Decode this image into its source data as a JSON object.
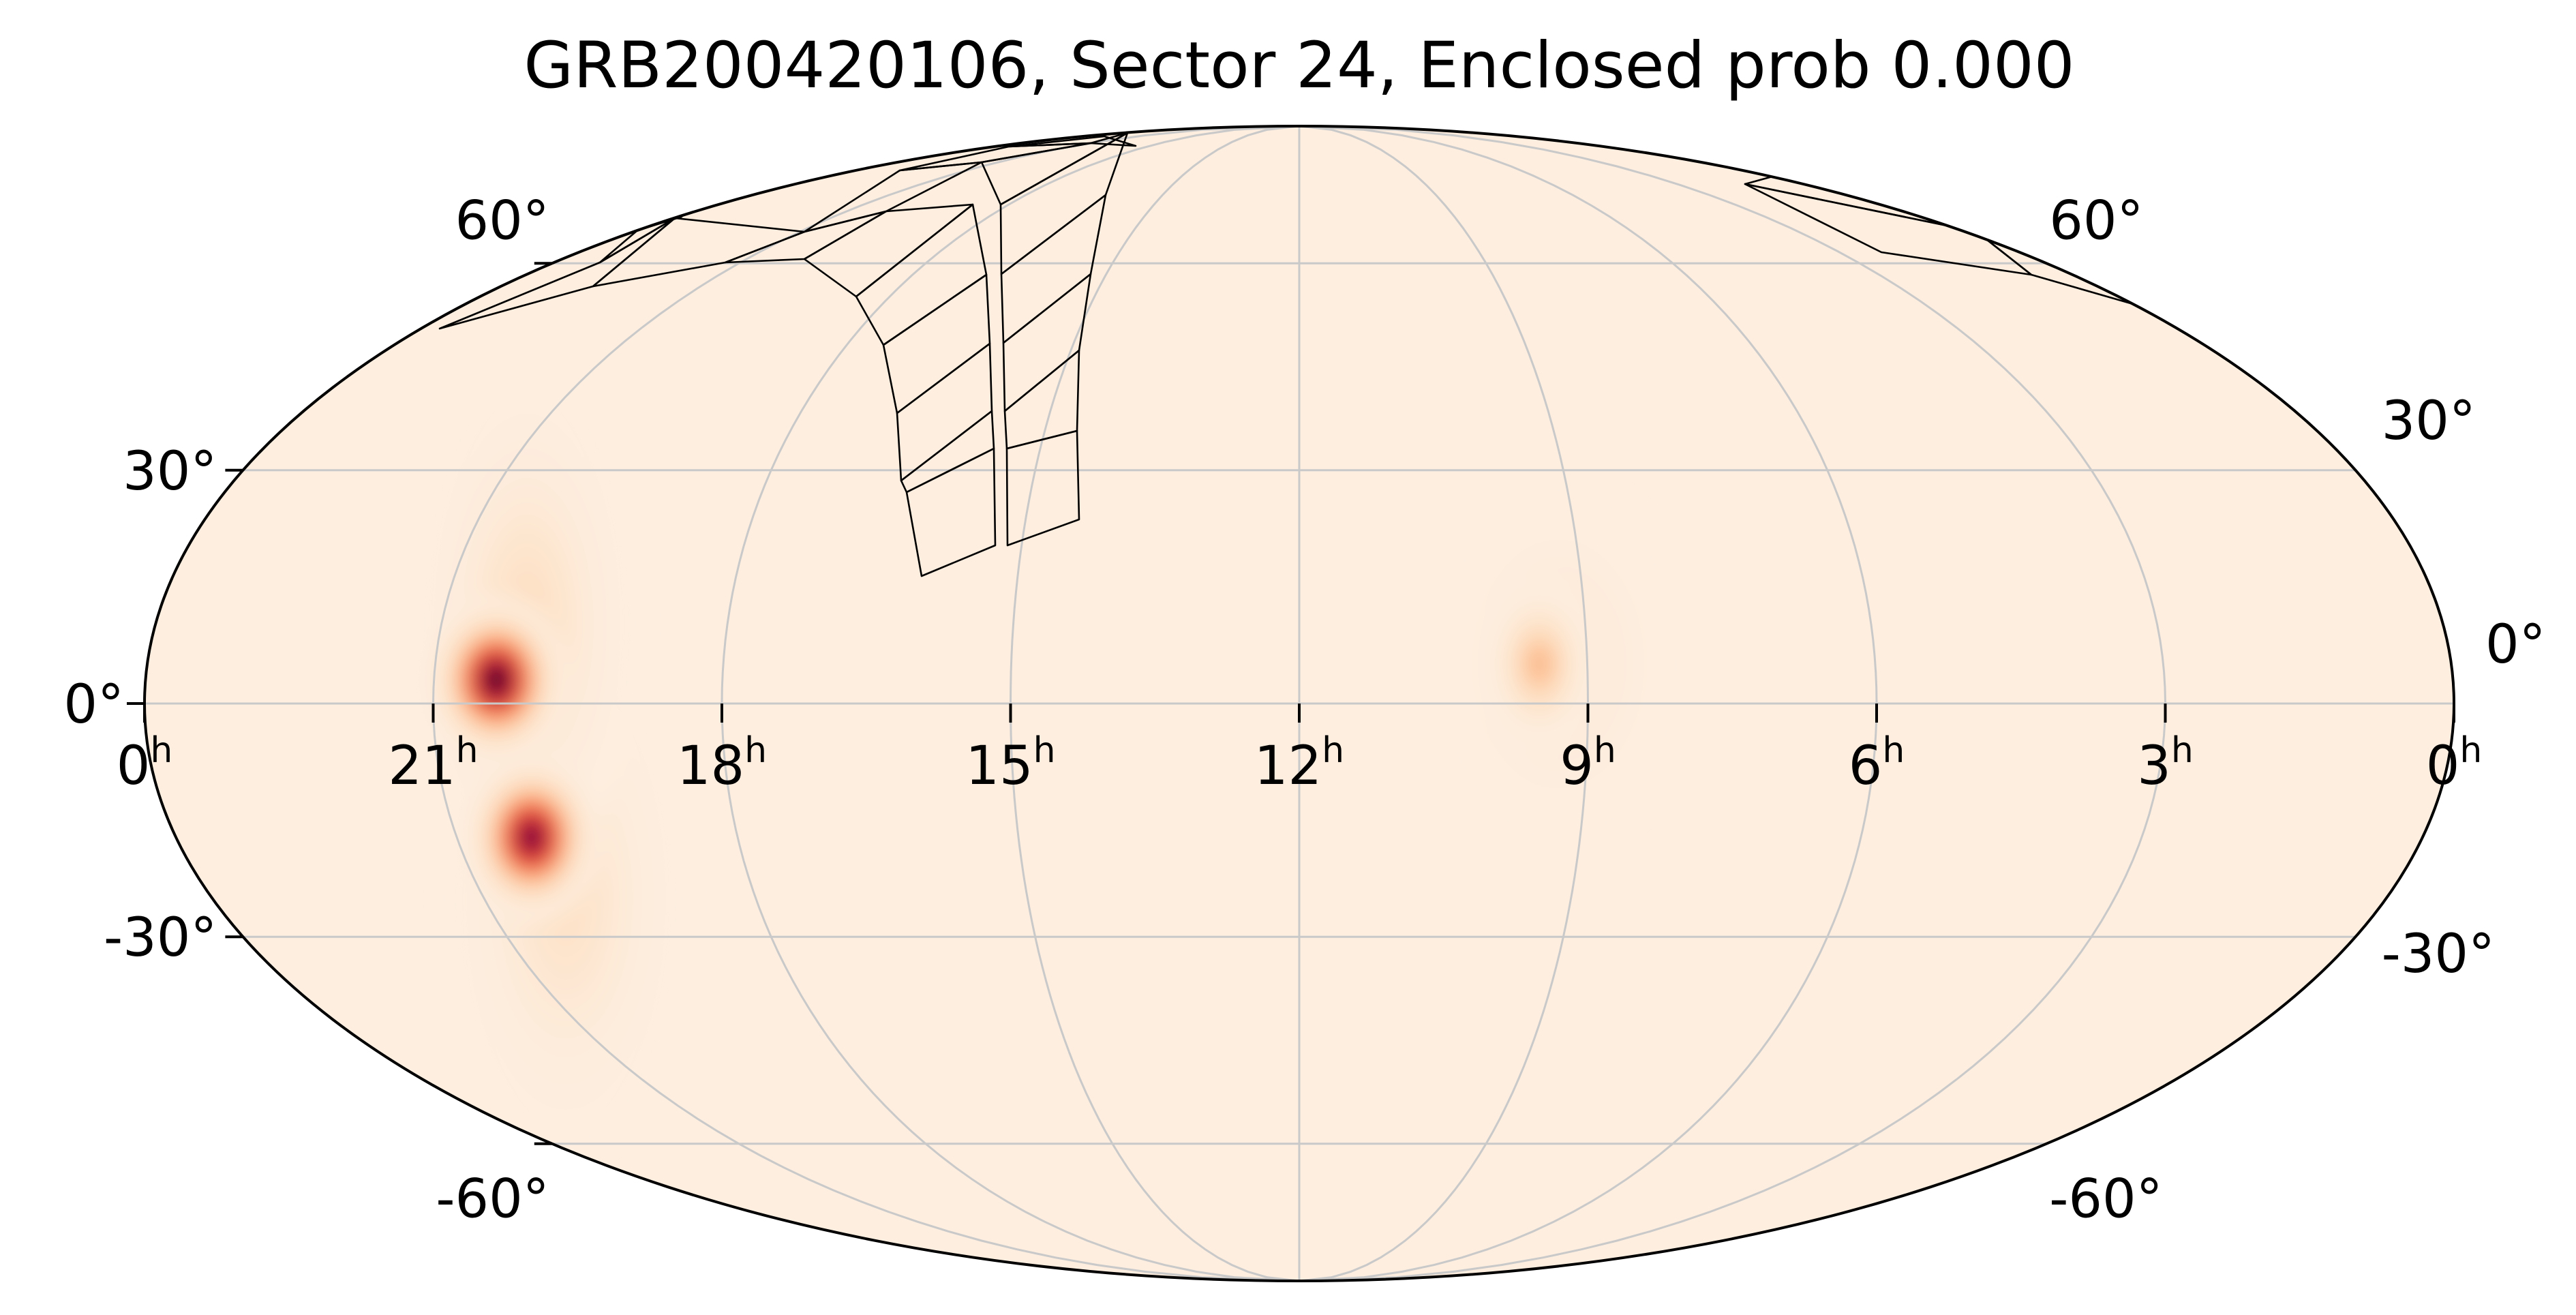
{
  "chart_data": {
    "type": "heatmap",
    "projection": "mollweide",
    "title": "GRB200420106, Sector 24, Enclosed prob 0.000",
    "grid": true,
    "ra_ticks": [
      {
        "hours": 24,
        "label": "0",
        "unit": "h"
      },
      {
        "hours": 21,
        "label": "21",
        "unit": "h"
      },
      {
        "hours": 18,
        "label": "18",
        "unit": "h"
      },
      {
        "hours": 15,
        "label": "15",
        "unit": "h"
      },
      {
        "hours": 12,
        "label": "12",
        "unit": "h"
      },
      {
        "hours": 9,
        "label": "9",
        "unit": "h"
      },
      {
        "hours": 6,
        "label": "6",
        "unit": "h"
      },
      {
        "hours": 3,
        "label": "3",
        "unit": "h"
      },
      {
        "hours": 0,
        "label": "0",
        "unit": "h"
      }
    ],
    "dec_ticks_left": [
      {
        "dec": 60,
        "label": "60°"
      },
      {
        "dec": 30,
        "label": "30°"
      },
      {
        "dec": 0,
        "label": "0°"
      },
      {
        "dec": -30,
        "label": "-30°"
      },
      {
        "dec": -60,
        "label": "-60°"
      }
    ],
    "dec_ticks_right": [
      {
        "dec": 60,
        "label": "60°"
      },
      {
        "dec": 30,
        "label": "30°"
      },
      {
        "dec": 0,
        "label": "0°"
      },
      {
        "dec": -30,
        "label": "-30°"
      },
      {
        "dec": -60,
        "label": "-60°"
      }
    ],
    "grid_dec_lines": [
      -60,
      -30,
      0,
      30,
      60
    ],
    "grid_ra_lines_hours": [
      21,
      18,
      15,
      12,
      9,
      6,
      3
    ],
    "colormap": [
      "#fdeee0",
      "#fdd8b5",
      "#fca06a",
      "#f05d3a",
      "#d41c3c",
      "#8a0a3c",
      "#1a0008"
    ],
    "probability_blobs": [
      {
        "ra_hours": 20.35,
        "dec": 3,
        "sigma_ra_deg": 5,
        "sigma_dec_deg": 6,
        "intensity": 1.0
      },
      {
        "ra_hours": 20.2,
        "dec": -17,
        "sigma_ra_deg": 5,
        "sigma_dec_deg": 6,
        "intensity": 0.92
      },
      {
        "ra_hours": 20.1,
        "dec": 10,
        "sigma_ra_deg": 8,
        "sigma_dec_deg": 18,
        "intensity": 0.12
      },
      {
        "ra_hours": 20.1,
        "dec": -25,
        "sigma_ra_deg": 9,
        "sigma_dec_deg": 18,
        "intensity": 0.1
      },
      {
        "ra_hours": 9.5,
        "dec": 5,
        "sigma_ra_deg": 4,
        "sigma_dec_deg": 6,
        "intensity": 0.28
      },
      {
        "ra_hours": 9.3,
        "dec": 5,
        "sigma_ra_deg": 9,
        "sigma_dec_deg": 13,
        "intensity": 0.05
      }
    ],
    "footprint_outline": "black",
    "map_background": "#fdeee0"
  }
}
